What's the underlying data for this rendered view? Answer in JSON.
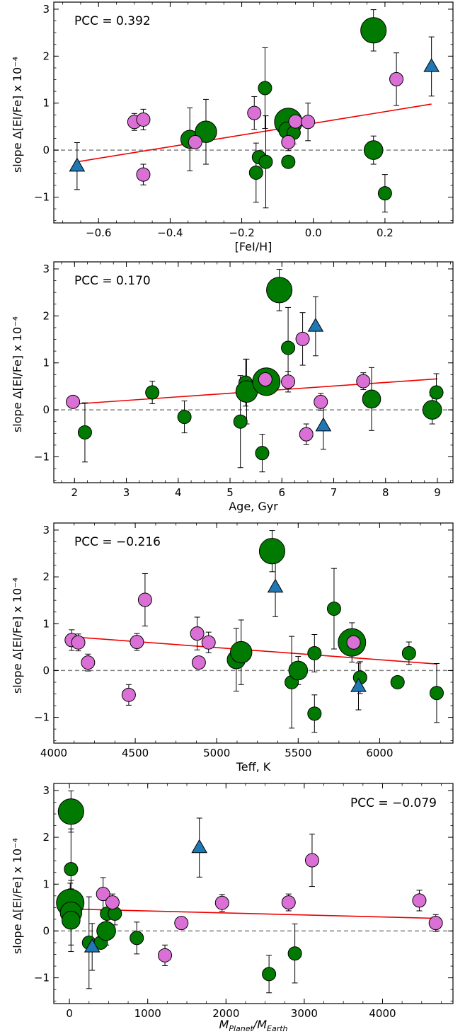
{
  "colors": {
    "green": "#007a00",
    "violet": "#da70d6",
    "blue": "#1f77b4",
    "fit": "#ee0000",
    "zero_line": "#808080"
  },
  "chart_data": [
    {
      "type": "scatter",
      "pcc": "PCC = 0.392",
      "pcc_position": "top-left",
      "xlabel": "[FeI/H]",
      "ylabel": "slope Δ[El/Fe] x 10⁻⁴",
      "xlim": [
        -0.725,
        0.39
      ],
      "ylim": [
        -1.55,
        3.15
      ],
      "xticks": [
        -0.6,
        -0.4,
        -0.2,
        0.0,
        0.2
      ],
      "xtick_labels": [
        "−0.6",
        "−0.4",
        "−0.2",
        "0.0",
        "0.2"
      ],
      "yticks": [
        -1,
        0,
        1,
        2,
        3
      ],
      "ytick_labels": [
        "−1",
        "0",
        "1",
        "2",
        "3"
      ],
      "fit_line": {
        "x": [
          -0.66,
          0.33
        ],
        "y": [
          -0.25,
          0.98
        ]
      },
      "zero_line": 0,
      "grid": false,
      "series": [
        {
          "marker": "circle",
          "color": "green",
          "points": [
            {
              "x": -0.345,
              "y": 0.23,
              "yerr": 0.67,
              "size": 1.35
            },
            {
              "x": -0.3,
              "y": 0.39,
              "yerr": 0.69,
              "size": 1.6
            },
            {
              "x": -0.16,
              "y": -0.48,
              "yerr": 0.63,
              "size": 1.0
            },
            {
              "x": -0.152,
              "y": -0.15,
              "yerr": 0.0,
              "size": 1.0
            },
            {
              "x": -0.135,
              "y": 1.32,
              "yerr": 0.86,
              "size": 1.0
            },
            {
              "x": -0.133,
              "y": -0.25,
              "yerr": 0.98,
              "size": 1.0
            },
            {
              "x": -0.07,
              "y": 0.6,
              "yerr": 0.0,
              "size": 2.05
            },
            {
              "x": -0.073,
              "y": 0.42,
              "yerr": 0.0,
              "size": 1.25
            },
            {
              "x": -0.055,
              "y": 0.37,
              "yerr": 0.24,
              "size": 1.0
            },
            {
              "x": -0.07,
              "y": -0.25,
              "yerr": 0.0,
              "size": 1.0
            },
            {
              "x": 0.168,
              "y": 2.55,
              "yerr": 0.44,
              "size": 1.9
            },
            {
              "x": 0.168,
              "y": 0.0,
              "yerr": 0.3,
              "size": 1.4
            },
            {
              "x": 0.2,
              "y": -0.92,
              "yerr": 0.4,
              "size": 1.0
            }
          ]
        },
        {
          "marker": "circle",
          "color": "violet",
          "points": [
            {
              "x": -0.5,
              "y": 0.6,
              "yerr": 0.18,
              "size": 1.0
            },
            {
              "x": -0.475,
              "y": 0.65,
              "yerr": 0.22,
              "size": 1.0
            },
            {
              "x": -0.475,
              "y": -0.52,
              "yerr": 0.22,
              "size": 1.0
            },
            {
              "x": -0.33,
              "y": 0.17,
              "yerr": 0.0,
              "size": 1.0
            },
            {
              "x": -0.165,
              "y": 0.79,
              "yerr": 0.35,
              "size": 1.0
            },
            {
              "x": -0.07,
              "y": 0.17,
              "yerr": 0.18,
              "size": 1.0
            },
            {
              "x": -0.05,
              "y": 0.61,
              "yerr": 0.0,
              "size": 1.0
            },
            {
              "x": -0.015,
              "y": 0.6,
              "yerr": 0.4,
              "size": 1.0
            },
            {
              "x": 0.232,
              "y": 1.51,
              "yerr": 0.56,
              "size": 1.0
            }
          ]
        },
        {
          "marker": "triangle",
          "color": "blue",
          "points": [
            {
              "x": -0.66,
              "y": -0.34,
              "yerr": 0.5,
              "size": 1.0
            },
            {
              "x": 0.33,
              "y": 1.78,
              "yerr": 0.63,
              "size": 1.0
            }
          ]
        }
      ]
    },
    {
      "type": "scatter",
      "pcc": "PCC = 0.170",
      "pcc_position": "top-left",
      "xlabel": "Age, Gyr",
      "ylabel": "slope Δ[El/Fe] x 10⁻⁴",
      "xlim": [
        1.6,
        9.3
      ],
      "ylim": [
        -1.55,
        3.15
      ],
      "xticks": [
        2,
        3,
        4,
        5,
        6,
        7,
        8,
        9
      ],
      "xtick_labels": [
        "2",
        "3",
        "4",
        "5",
        "6",
        "7",
        "8",
        "9"
      ],
      "yticks": [
        -1,
        0,
        1,
        2,
        3
      ],
      "ytick_labels": [
        "−1",
        "0",
        "1",
        "2",
        "3"
      ],
      "fit_line": {
        "x": [
          1.95,
          9.0
        ],
        "y": [
          0.12,
          0.66
        ]
      },
      "zero_line": 0,
      "grid": false,
      "series": [
        {
          "marker": "circle",
          "color": "green",
          "points": [
            {
              "x": 2.2,
              "y": -0.48,
              "yerr": 0.63,
              "size": 1.0
            },
            {
              "x": 3.5,
              "y": 0.37,
              "yerr": 0.24,
              "size": 1.0
            },
            {
              "x": 4.12,
              "y": -0.15,
              "yerr": 0.34,
              "size": 1.0
            },
            {
              "x": 5.2,
              "y": -0.25,
              "yerr": 0.98,
              "size": 1.0
            },
            {
              "x": 5.3,
              "y": 0.58,
              "yerr": 0.5,
              "size": 1.0
            },
            {
              "x": 5.32,
              "y": 0.39,
              "yerr": 0.69,
              "size": 1.6
            },
            {
              "x": 5.62,
              "y": -0.92,
              "yerr": 0.4,
              "size": 1.0
            },
            {
              "x": 5.7,
              "y": 0.6,
              "yerr": 0.0,
              "size": 2.05
            },
            {
              "x": 5.95,
              "y": 2.55,
              "yerr": 0.44,
              "size": 1.9
            },
            {
              "x": 6.12,
              "y": 1.32,
              "yerr": 0.86,
              "size": 1.0
            },
            {
              "x": 7.73,
              "y": 0.23,
              "yerr": 0.67,
              "size": 1.35
            },
            {
              "x": 8.9,
              "y": 0.0,
              "yerr": 0.3,
              "size": 1.4
            },
            {
              "x": 8.98,
              "y": 0.37,
              "yerr": 0.4,
              "size": 1.0
            }
          ]
        },
        {
          "marker": "circle",
          "color": "violet",
          "points": [
            {
              "x": 1.97,
              "y": 0.17,
              "yerr": 0.13,
              "size": 1.0
            },
            {
              "x": 5.68,
              "y": 0.65,
              "yerr": 0.0,
              "size": 1.0
            },
            {
              "x": 6.12,
              "y": 0.6,
              "yerr": 0.22,
              "size": 1.0
            },
            {
              "x": 6.4,
              "y": 1.51,
              "yerr": 0.56,
              "size": 1.0
            },
            {
              "x": 6.47,
              "y": -0.52,
              "yerr": 0.22,
              "size": 1.0
            },
            {
              "x": 6.75,
              "y": 0.17,
              "yerr": 0.18,
              "size": 1.0
            },
            {
              "x": 7.57,
              "y": 0.61,
              "yerr": 0.18,
              "size": 1.0
            }
          ]
        },
        {
          "marker": "triangle",
          "color": "blue",
          "points": [
            {
              "x": 6.65,
              "y": 1.78,
              "yerr": 0.63,
              "size": 1.0
            },
            {
              "x": 6.8,
              "y": -0.34,
              "yerr": 0.5,
              "size": 1.0
            }
          ]
        }
      ]
    },
    {
      "type": "scatter",
      "pcc": "PCC = −0.216",
      "pcc_position": "top-left",
      "xlabel": "Teff, K",
      "ylabel": "slope Δ[El/Fe] x 10⁻⁴",
      "xlim": [
        4000,
        6450
      ],
      "ylim": [
        -1.55,
        3.15
      ],
      "xticks": [
        4000,
        4500,
        5000,
        5500,
        6000
      ],
      "xtick_labels": [
        "4000",
        "4500",
        "5000",
        "5500",
        "6000"
      ],
      "yticks": [
        -1,
        0,
        1,
        2,
        3
      ],
      "ytick_labels": [
        "−1",
        "0",
        "1",
        "2",
        "3"
      ],
      "fit_line": {
        "x": [
          4110,
          6350
        ],
        "y": [
          0.72,
          0.14
        ]
      },
      "zero_line": 0,
      "grid": false,
      "series": [
        {
          "marker": "circle",
          "color": "green",
          "points": [
            {
              "x": 5120,
              "y": 0.23,
              "yerr": 0.67,
              "size": 1.35
            },
            {
              "x": 5150,
              "y": 0.39,
              "yerr": 0.69,
              "size": 1.6
            },
            {
              "x": 5340,
              "y": 2.55,
              "yerr": 0.44,
              "size": 1.9
            },
            {
              "x": 5460,
              "y": -0.25,
              "yerr": 0.98,
              "size": 1.0
            },
            {
              "x": 5500,
              "y": 0.0,
              "yerr": 0.3,
              "size": 1.4
            },
            {
              "x": 5600,
              "y": 0.37,
              "yerr": 0.4,
              "size": 1.0
            },
            {
              "x": 5600,
              "y": -0.92,
              "yerr": 0.4,
              "size": 1.0
            },
            {
              "x": 5720,
              "y": 1.32,
              "yerr": 0.86,
              "size": 1.0
            },
            {
              "x": 5830,
              "y": 0.6,
              "yerr": 0.42,
              "size": 2.05
            },
            {
              "x": 5880,
              "y": -0.15,
              "yerr": 0.34,
              "size": 1.0
            },
            {
              "x": 6110,
              "y": -0.25,
              "yerr": 0.0,
              "size": 1.0
            },
            {
              "x": 6180,
              "y": 0.37,
              "yerr": 0.24,
              "size": 1.0
            },
            {
              "x": 6350,
              "y": -0.48,
              "yerr": 0.63,
              "size": 1.0
            }
          ]
        },
        {
          "marker": "circle",
          "color": "violet",
          "points": [
            {
              "x": 4110,
              "y": 0.65,
              "yerr": 0.22,
              "size": 1.0
            },
            {
              "x": 4150,
              "y": 0.6,
              "yerr": 0.18,
              "size": 1.0
            },
            {
              "x": 4210,
              "y": 0.17,
              "yerr": 0.18,
              "size": 1.0
            },
            {
              "x": 4460,
              "y": -0.52,
              "yerr": 0.22,
              "size": 1.0
            },
            {
              "x": 4510,
              "y": 0.61,
              "yerr": 0.18,
              "size": 1.0
            },
            {
              "x": 4560,
              "y": 1.51,
              "yerr": 0.56,
              "size": 1.0
            },
            {
              "x": 4880,
              "y": 0.79,
              "yerr": 0.35,
              "size": 1.0
            },
            {
              "x": 4890,
              "y": 0.17,
              "yerr": 0.13,
              "size": 1.0
            },
            {
              "x": 4950,
              "y": 0.6,
              "yerr": 0.22,
              "size": 1.0
            },
            {
              "x": 5840,
              "y": 0.6,
              "yerr": 0.0,
              "size": 1.0
            }
          ]
        },
        {
          "marker": "triangle",
          "color": "blue",
          "points": [
            {
              "x": 5360,
              "y": 1.78,
              "yerr": 0.63,
              "size": 1.0
            },
            {
              "x": 5870,
              "y": -0.34,
              "yerr": 0.5,
              "size": 1.0
            }
          ]
        }
      ]
    },
    {
      "type": "scatter",
      "pcc": "PCC = −0.079",
      "pcc_position": "top-right",
      "xlabel": "M_Planet/M_Earth",
      "xlabel_main": "M",
      "xlabel_sub_1": "Planet",
      "xlabel_sep": "/M",
      "xlabel_sub_2": "Earth",
      "ylabel": "slope Δ[El/Fe] x 10⁻⁴",
      "xlim": [
        -200,
        4900
      ],
      "ylim": [
        -1.55,
        3.15
      ],
      "xticks": [
        0,
        1000,
        2000,
        3000,
        4000
      ],
      "xtick_labels": [
        "0",
        "1000",
        "2000",
        "3000",
        "4000"
      ],
      "yticks": [
        -1,
        0,
        1,
        2,
        3
      ],
      "ytick_labels": [
        "−1",
        "0",
        "1",
        "2",
        "3"
      ],
      "fit_line": {
        "x": [
          0,
          4680
        ],
        "y": [
          0.47,
          0.27
        ]
      },
      "zero_line": 0,
      "grid": false,
      "series": [
        {
          "marker": "circle",
          "color": "green",
          "points": [
            {
              "x": 20,
              "y": 2.55,
              "yerr": 0.44,
              "size": 1.9
            },
            {
              "x": 20,
              "y": 1.32,
              "yerr": 0.86,
              "size": 1.0
            },
            {
              "x": 10,
              "y": 0.6,
              "yerr": 0.42,
              "size": 2.05
            },
            {
              "x": 20,
              "y": 0.39,
              "yerr": 0.69,
              "size": 1.6
            },
            {
              "x": 20,
              "y": 0.23,
              "yerr": 0.67,
              "size": 1.35
            },
            {
              "x": 250,
              "y": -0.25,
              "yerr": 0.98,
              "size": 1.0
            },
            {
              "x": 400,
              "y": -0.25,
              "yerr": 0.0,
              "size": 1.0
            },
            {
              "x": 470,
              "y": 0.0,
              "yerr": 0.3,
              "size": 1.4
            },
            {
              "x": 480,
              "y": 0.37,
              "yerr": 0.4,
              "size": 1.0
            },
            {
              "x": 580,
              "y": 0.37,
              "yerr": 0.24,
              "size": 1.0
            },
            {
              "x": 860,
              "y": -0.15,
              "yerr": 0.34,
              "size": 1.0
            },
            {
              "x": 2550,
              "y": -0.92,
              "yerr": 0.4,
              "size": 1.0
            },
            {
              "x": 2880,
              "y": -0.48,
              "yerr": 0.63,
              "size": 1.0
            }
          ]
        },
        {
          "marker": "circle",
          "color": "violet",
          "points": [
            {
              "x": 430,
              "y": 0.79,
              "yerr": 0.35,
              "size": 1.0
            },
            {
              "x": 550,
              "y": 0.61,
              "yerr": 0.18,
              "size": 1.0
            },
            {
              "x": 1220,
              "y": -0.52,
              "yerr": 0.22,
              "size": 1.0
            },
            {
              "x": 1430,
              "y": 0.17,
              "yerr": 0.13,
              "size": 1.0
            },
            {
              "x": 1950,
              "y": 0.6,
              "yerr": 0.18,
              "size": 1.0
            },
            {
              "x": 2800,
              "y": 0.61,
              "yerr": 0.18,
              "size": 1.0
            },
            {
              "x": 3100,
              "y": 1.51,
              "yerr": 0.56,
              "size": 1.0
            },
            {
              "x": 4470,
              "y": 0.65,
              "yerr": 0.22,
              "size": 1.0
            },
            {
              "x": 4680,
              "y": 0.17,
              "yerr": 0.18,
              "size": 1.0
            }
          ]
        },
        {
          "marker": "triangle",
          "color": "blue",
          "points": [
            {
              "x": 1660,
              "y": 1.78,
              "yerr": 0.63,
              "size": 1.0
            },
            {
              "x": 290,
              "y": -0.34,
              "yerr": 0.5,
              "size": 1.0
            }
          ]
        }
      ]
    }
  ]
}
